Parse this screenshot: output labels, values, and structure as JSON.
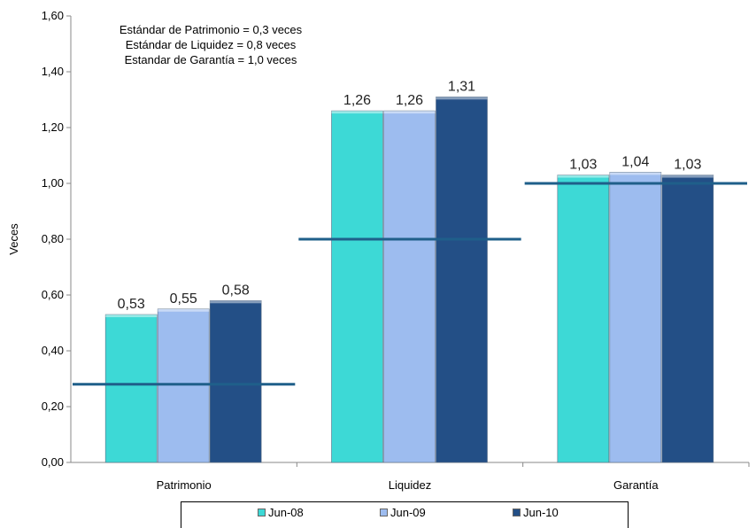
{
  "chart_data": {
    "type": "bar",
    "ylabel": "Veces",
    "ylim": [
      0,
      1.6
    ],
    "yticks": [
      "0,00",
      "0,20",
      "0,40",
      "0,60",
      "0,80",
      "1,00",
      "1,20",
      "1,40",
      "1,60"
    ],
    "categories": [
      "Patrimonio",
      "Liquidez",
      "Garantía"
    ],
    "series": [
      {
        "name": "Jun-08",
        "values": [
          0.53,
          1.26,
          1.03
        ],
        "labels": [
          "0,53",
          "1,26",
          "1,03"
        ],
        "color": "#3dd9d6"
      },
      {
        "name": "Jun-09",
        "values": [
          0.55,
          1.26,
          1.04
        ],
        "labels": [
          "0,55",
          "1,26",
          "1,04"
        ],
        "color": "#9dbcef"
      },
      {
        "name": "Jun-10",
        "values": [
          0.58,
          1.31,
          1.03
        ],
        "labels": [
          "0,58",
          "1,31",
          "1,03"
        ],
        "color": "#234f86"
      }
    ],
    "standards": [
      0.28,
      0.8,
      1.0
    ],
    "standard_color": "#1f5f8a",
    "notes": [
      "Estándar de Patrimonio = 0,3 veces",
      "Estándar de Liquidez = 0,8 veces",
      "Estandar de Garantía = 1,0 veces"
    ],
    "grid": false,
    "legend_position": "bottom"
  }
}
